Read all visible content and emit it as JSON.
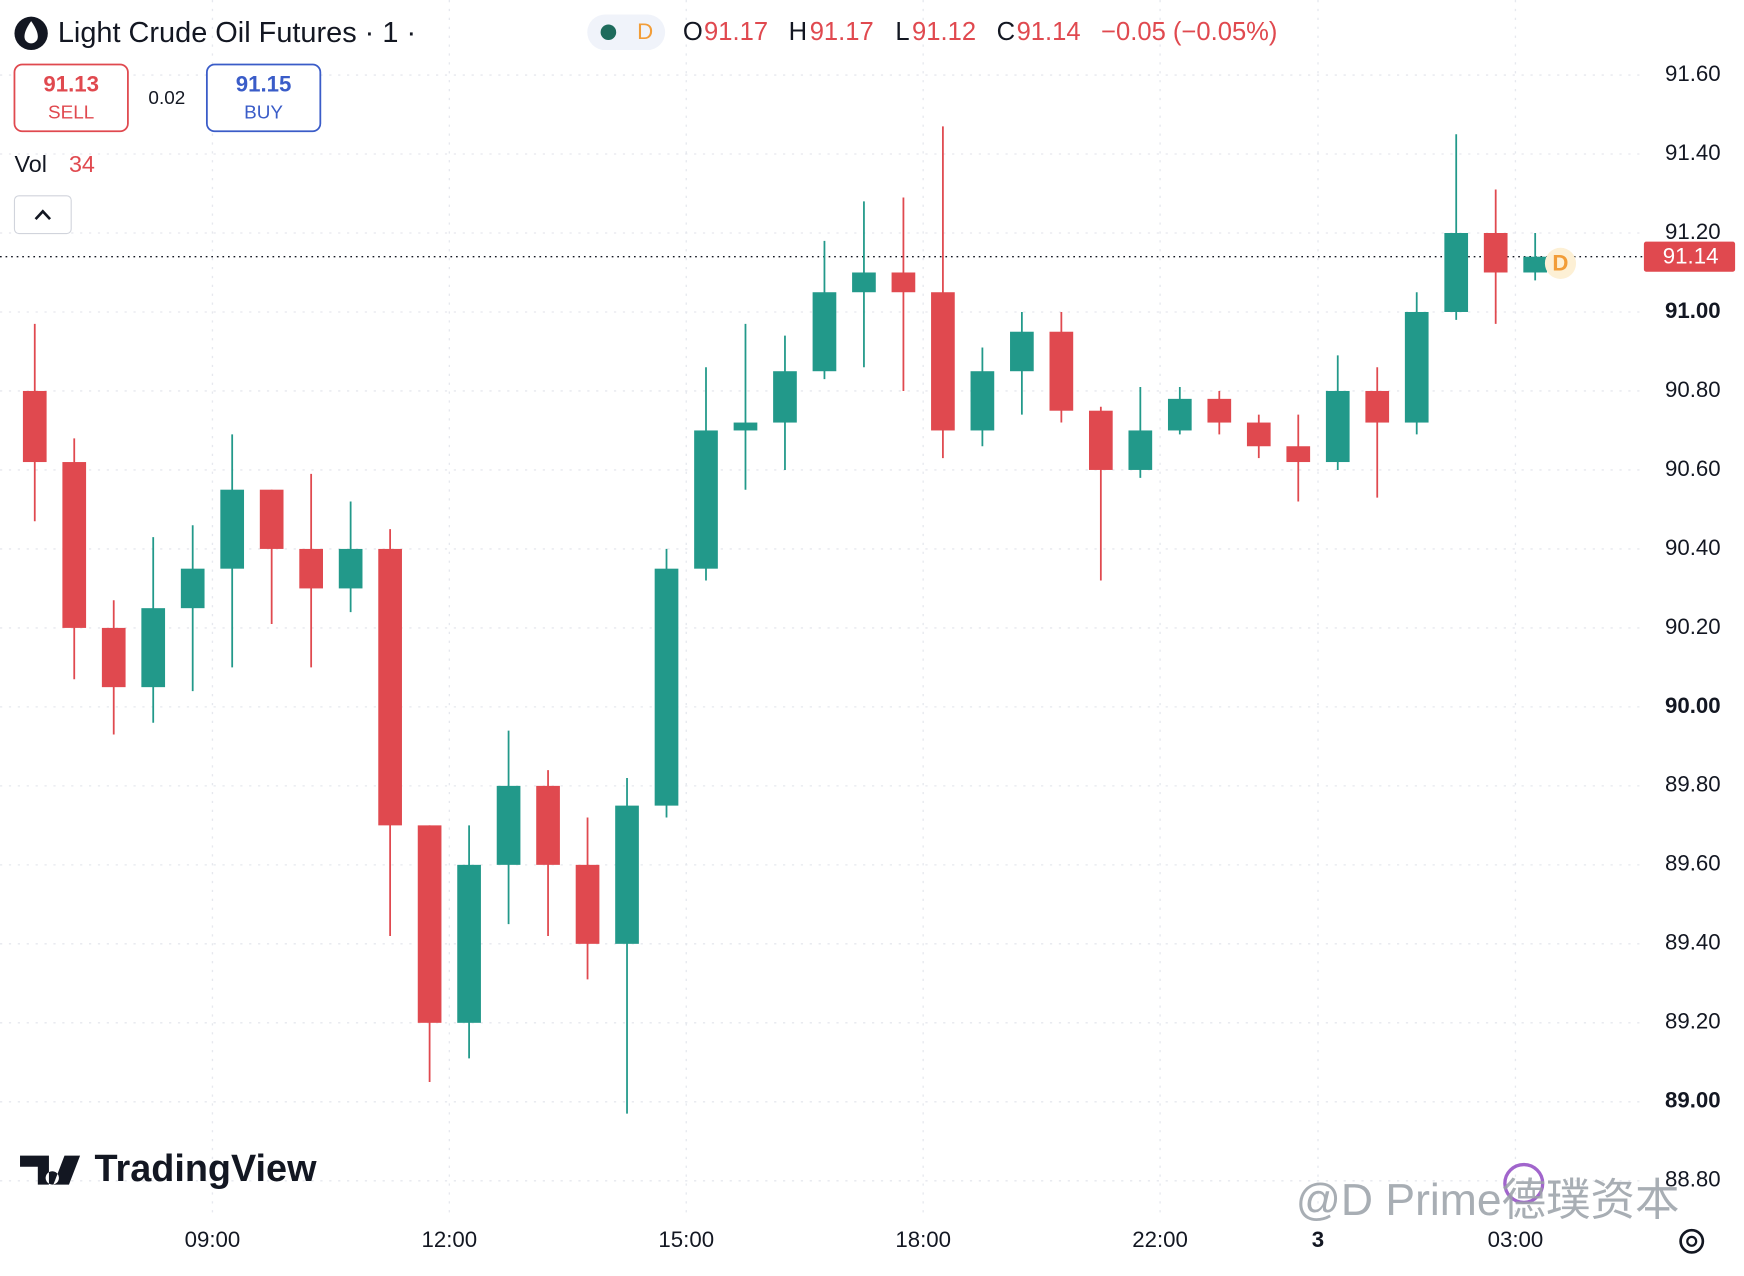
{
  "chart_data": {
    "type": "candlestick",
    "title": "Light Crude Oil Futures · 1 ·",
    "interval": "D",
    "legend": [
      {
        "prefix": "O",
        "value": 91.17
      },
      {
        "prefix": "H",
        "value": 91.17
      },
      {
        "prefix": "L",
        "value": 91.12
      },
      {
        "prefix": "C",
        "value": 91.14
      }
    ],
    "change_text": "−0.05 (−0.05%)",
    "sell": {
      "price": 91.13,
      "label": "SELL"
    },
    "spread": 0.02,
    "buy": {
      "price": 91.15,
      "label": "BUY"
    },
    "volume_label": "Vol",
    "volume": 34,
    "last_price": 91.14,
    "last_price_marker": "D",
    "brand": "TradingView",
    "watermark": "@D Prime德璞资本",
    "up_color": "#22998a",
    "down_color": "#e0494f",
    "grid": true,
    "categories": [
      null,
      null,
      null,
      null,
      null,
      "09:00",
      null,
      null,
      null,
      null,
      null,
      "12:00",
      null,
      null,
      null,
      null,
      null,
      "15:00",
      null,
      null,
      null,
      null,
      null,
      "18:00",
      null,
      null,
      null,
      null,
      null,
      "22:00",
      null,
      null,
      null,
      "3",
      null,
      null,
      null,
      null,
      "03:00"
    ],
    "open": [
      90.8,
      90.62,
      90.2,
      90.05,
      90.25,
      90.35,
      90.55,
      90.4,
      90.3,
      90.4,
      89.7,
      89.2,
      89.6,
      89.8,
      89.6,
      89.4,
      89.75,
      90.35,
      90.7,
      90.72,
      90.85,
      91.05,
      91.1,
      91.05,
      90.7,
      90.85,
      90.95,
      90.75,
      90.6,
      90.7,
      90.78,
      90.72,
      90.66,
      90.62,
      90.8,
      90.72,
      91.0,
      91.2,
      91.1
    ],
    "high": [
      90.97,
      90.68,
      90.27,
      90.43,
      90.46,
      90.69,
      90.55,
      90.59,
      90.52,
      90.45,
      89.7,
      89.7,
      89.94,
      89.84,
      89.72,
      89.82,
      90.4,
      90.86,
      90.97,
      90.94,
      91.18,
      91.28,
      91.29,
      91.47,
      90.91,
      91.0,
      91.0,
      90.76,
      90.81,
      90.81,
      90.8,
      90.74,
      90.74,
      90.89,
      90.86,
      91.05,
      91.45,
      91.31,
      91.2
    ],
    "low": [
      90.47,
      90.07,
      89.93,
      89.96,
      90.04,
      90.1,
      90.21,
      90.1,
      90.24,
      89.42,
      89.05,
      89.11,
      89.45,
      89.42,
      89.31,
      88.97,
      89.72,
      90.32,
      90.55,
      90.6,
      90.83,
      90.86,
      90.8,
      90.63,
      90.66,
      90.74,
      90.72,
      90.32,
      90.58,
      90.69,
      90.69,
      90.63,
      90.52,
      90.6,
      90.53,
      90.69,
      90.98,
      90.97,
      91.08
    ],
    "close": [
      90.62,
      90.2,
      90.05,
      90.25,
      90.35,
      90.55,
      90.4,
      90.3,
      90.4,
      89.7,
      89.2,
      89.6,
      89.8,
      89.6,
      89.4,
      89.75,
      90.35,
      90.7,
      90.72,
      90.85,
      91.05,
      91.1,
      91.05,
      90.7,
      90.85,
      90.95,
      90.75,
      90.6,
      90.7,
      90.78,
      90.72,
      90.66,
      90.62,
      90.8,
      90.72,
      91.0,
      91.2,
      91.1,
      91.14
    ],
    "ylim": [
      88.72,
      91.79
    ],
    "yticks": [
      {
        "value": 91.6,
        "label": "91.60"
      },
      {
        "value": 91.4,
        "label": "91.40"
      },
      {
        "value": 91.2,
        "label": "91.20"
      },
      {
        "value": 91.0,
        "label": "91.00"
      },
      {
        "value": 90.8,
        "label": "90.80"
      },
      {
        "value": 90.6,
        "label": "90.60"
      },
      {
        "value": 90.4,
        "label": "90.40"
      },
      {
        "value": 90.2,
        "label": "90.20"
      },
      {
        "value": 90.0,
        "label": "90.00"
      },
      {
        "value": 89.8,
        "label": "89.80"
      },
      {
        "value": 89.6,
        "label": "89.60"
      },
      {
        "value": 89.4,
        "label": "89.40"
      },
      {
        "value": 89.2,
        "label": "89.20"
      },
      {
        "value": 89.0,
        "label": "89.00"
      },
      {
        "value": 88.8,
        "label": "88.80"
      }
    ]
  }
}
